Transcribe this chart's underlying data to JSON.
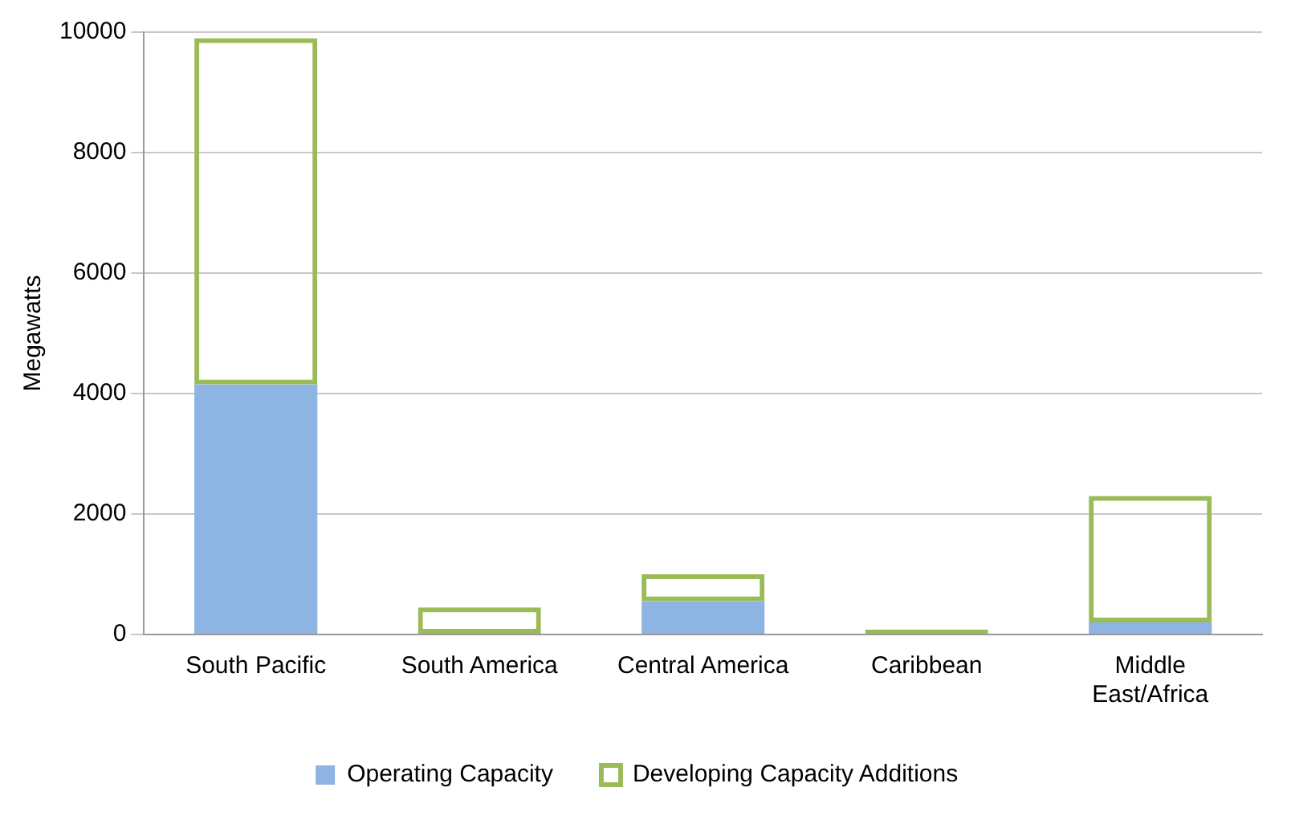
{
  "chart_data": {
    "type": "bar",
    "ylabel": "Megawatts",
    "categories": [
      "South Pacific",
      "South America",
      "Central America",
      "Caribbean",
      "Middle East/Africa"
    ],
    "stacked": true,
    "series": [
      {
        "name": "Operating Capacity",
        "color": "#8db4e2",
        "values": [
          4150,
          0,
          550,
          0,
          200
        ]
      },
      {
        "name": "Developing Capacity Additions",
        "color": "#9bbb59",
        "values": [
          5750,
          450,
          450,
          80,
          2100
        ]
      }
    ],
    "ylim": [
      0,
      10000
    ],
    "yticks": [
      0,
      2000,
      4000,
      6000,
      8000,
      10000
    ],
    "grid": "y",
    "legend": "bottom"
  }
}
